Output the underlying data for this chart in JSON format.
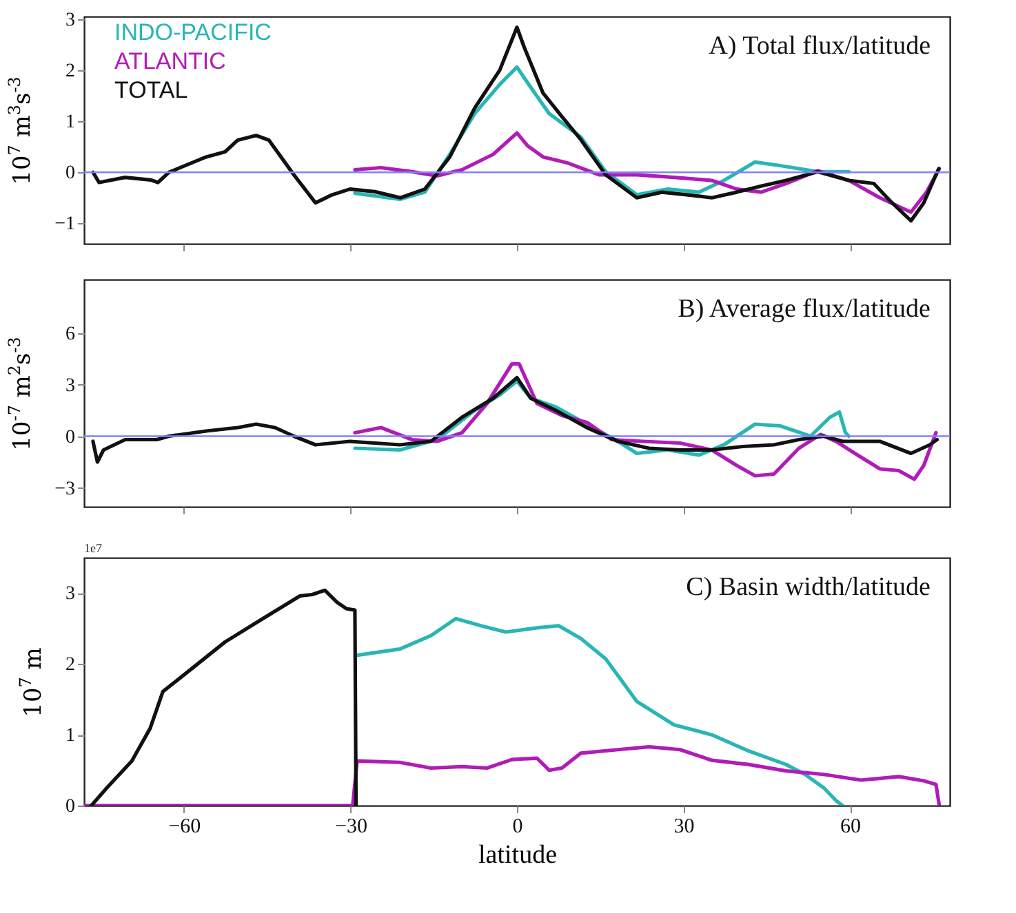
{
  "chart_data": [
    {
      "type": "line",
      "title": "A) Total flux/latitude",
      "ylabel": "10$^{7}$ m$^{3}$s$^{-3}$",
      "xlim": [
        -78,
        78
      ],
      "xticks": [
        -60,
        -30,
        0,
        30,
        60
      ],
      "ylim": [
        -1.4,
        3.05
      ],
      "yticks": [
        -1,
        0,
        1,
        2,
        3
      ],
      "tick_labels": "y",
      "grid": false,
      "ref_lines": [
        {
          "axis": "y",
          "value": 0,
          "color": "#8080ff"
        }
      ],
      "series": [
        {
          "name": "INDO-PACIFIC",
          "color": "#2ab5b5",
          "x": [
            -29.2,
            -21.1,
            -16.6,
            -12.1,
            -7.6,
            -3.1,
            0,
            2.5,
            5.8,
            11.5,
            16,
            21.6,
            27.2,
            32.8,
            37.3,
            42.9,
            47.4,
            54.2,
            59.8
          ],
          "values": [
            -0.41,
            -0.53,
            -0.39,
            0.35,
            1.15,
            1.72,
            2.06,
            1.66,
            1.15,
            0.69,
            0.01,
            -0.44,
            -0.33,
            -0.39,
            -0.16,
            0.2,
            0.13,
            0.01,
            0.01
          ]
        },
        {
          "name": "ATLANTIC",
          "color": "#b01cb8",
          "x": [
            -29.2,
            -24.5,
            -18.9,
            -14.4,
            -9.9,
            -4.3,
            0,
            1.9,
            4.7,
            9.2,
            14.8,
            21.6,
            28.3,
            35.1,
            39.6,
            44,
            48.5,
            54.2,
            59.8,
            65.4,
            71,
            73.8,
            76.1
          ],
          "values": [
            0.05,
            0.09,
            0.01,
            -0.07,
            0.05,
            0.35,
            0.77,
            0.52,
            0.3,
            0.18,
            -0.05,
            -0.05,
            -0.1,
            -0.16,
            -0.33,
            -0.39,
            -0.22,
            0.03,
            -0.16,
            -0.5,
            -0.78,
            -0.39,
            0.07
          ]
        },
        {
          "name": "TOTAL",
          "color": "#111111",
          "x": [
            -76.4,
            -75.3,
            -70.6,
            -66,
            -64.7,
            -62.7,
            -56,
            -52.6,
            -50.3,
            -47,
            -44.7,
            -40.2,
            -36.3,
            -33.5,
            -30.1,
            -25.6,
            -21,
            -16.6,
            -12.1,
            -7.6,
            -3.1,
            0,
            1.3,
            4.7,
            8.1,
            11.5,
            16,
            21.6,
            26.1,
            30.6,
            35.1,
            39.6,
            44,
            48.5,
            54.2,
            59.8,
            64.3,
            67.6,
            71,
            73.3,
            75.5,
            76
          ],
          "values": [
            0,
            -0.2,
            -0.1,
            -0.15,
            -0.2,
            0,
            0.3,
            0.4,
            0.63,
            0.72,
            0.63,
            -0.05,
            -0.6,
            -0.45,
            -0.33,
            -0.38,
            -0.5,
            -0.33,
            0.3,
            1.26,
            2,
            2.84,
            2.45,
            1.55,
            1.09,
            0.64,
            -0.05,
            -0.5,
            -0.39,
            -0.44,
            -0.5,
            -0.39,
            -0.27,
            -0.16,
            0.01,
            -0.16,
            -0.22,
            -0.6,
            -0.95,
            -0.6,
            -0.05,
            0.07
          ]
        }
      ]
    },
    {
      "type": "line",
      "title": "B) Average flux/latitude",
      "ylabel": "10$^{-7}$ m$^{2}$s$^{-3}$",
      "xlim": [
        -78,
        78
      ],
      "xticks": [
        -60,
        -30,
        0,
        30,
        60
      ],
      "ylim": [
        -4.1,
        9.1
      ],
      "yticks": [
        -3,
        0,
        3,
        6
      ],
      "tick_labels": "y",
      "grid": false,
      "ref_lines": [
        {
          "axis": "y",
          "value": 0,
          "color": "#8080ff"
        }
      ],
      "series": [
        {
          "color": "#2ab5b5",
          "x": [
            -29.2,
            -21.1,
            -14.4,
            -7.6,
            -3.1,
            0,
            2.5,
            7,
            12.6,
            18.2,
            21.6,
            27.2,
            32.8,
            37.3,
            42.9,
            47.4,
            52.9,
            56.4,
            58.1,
            59.2,
            59.8
          ],
          "values": [
            -0.7,
            -0.8,
            -0.2,
            1.5,
            2.4,
            3.2,
            2.2,
            1.7,
            0.7,
            -0.3,
            -1,
            -0.8,
            -1.1,
            -0.5,
            0.7,
            0.6,
            0,
            1.1,
            1.4,
            0.2,
            0
          ]
        },
        {
          "color": "#b01cb8",
          "x": [
            -29.2,
            -24.5,
            -18.9,
            -14.4,
            -9.9,
            -5.4,
            -0.9,
            0.4,
            3.6,
            8.1,
            12.6,
            17.1,
            22.7,
            29.4,
            35.1,
            39.6,
            42.9,
            46.3,
            50.8,
            54.7,
            57.5,
            60.9,
            65.4,
            68.8,
            71.6,
            73.3,
            75.5
          ],
          "values": [
            0.2,
            0.5,
            -0.2,
            -0.3,
            0.2,
            1.9,
            4.2,
            4.2,
            1.9,
            1.2,
            0.8,
            -0.2,
            -0.3,
            -0.4,
            -0.8,
            -1.7,
            -2.3,
            -2.2,
            -0.7,
            0.1,
            -0.3,
            -1,
            -1.9,
            -2,
            -2.5,
            -1.7,
            0.2
          ]
        },
        {
          "color": "#111111",
          "x": [
            -76.4,
            -75.6,
            -74.5,
            -70.6,
            -64.9,
            -62.7,
            -56,
            -50.3,
            -47,
            -43.6,
            -40.2,
            -36.3,
            -30.1,
            -25.6,
            -21.1,
            -15.5,
            -9.9,
            -4.3,
            0,
            2.5,
            7,
            12.6,
            18.2,
            23.8,
            29.4,
            35.1,
            40.7,
            46.3,
            50.8,
            55.3,
            58.7,
            62,
            65.4,
            71,
            74.4,
            75.7
          ],
          "values": [
            -0.3,
            -1.5,
            -0.8,
            -0.2,
            -0.2,
            0,
            0.3,
            0.5,
            0.7,
            0.5,
            0,
            -0.5,
            -0.3,
            -0.4,
            -0.5,
            -0.3,
            1.1,
            2.2,
            3.4,
            2.2,
            1.5,
            0.5,
            -0.3,
            -0.7,
            -0.8,
            -0.8,
            -0.6,
            -0.5,
            -0.2,
            0,
            -0.3,
            -0.3,
            -0.3,
            -1,
            -0.5,
            -0.2
          ]
        }
      ]
    },
    {
      "type": "line",
      "title": "C) Basin width/latitude",
      "ylabel": "10$^{7}$ m",
      "xlabel": "latitude",
      "annotations": [
        "1e7"
      ],
      "xlim": [
        -78,
        78
      ],
      "xticks": [
        -60,
        -30,
        0,
        30,
        60
      ],
      "ylim": [
        0,
        3.5
      ],
      "yticks": [
        0,
        1,
        2,
        3
      ],
      "grid": false,
      "series": [
        {
          "color": "#2ab5b5",
          "x": [
            -29,
            -21.1,
            -15.5,
            -11,
            -6.5,
            -2,
            3.6,
            7.5,
            11.5,
            16,
            21.6,
            28.3,
            35.1,
            41.8,
            48.5,
            51.9,
            55.3,
            57.5,
            58.7
          ],
          "values": [
            2.12,
            2.21,
            2.4,
            2.64,
            2.54,
            2.45,
            2.51,
            2.54,
            2.36,
            2.07,
            1.47,
            1.14,
            1,
            0.77,
            0.58,
            0.44,
            0.25,
            0.07,
            0
          ]
        },
        {
          "color": "#b01cb8",
          "x": [
            -77.9,
            -29.6,
            -28.8,
            -21.1,
            -15.5,
            -9.9,
            -5.4,
            -0.9,
            3.6,
            5.8,
            8.1,
            11.5,
            18.2,
            23.8,
            29.4,
            35.1,
            41.8,
            48.5,
            55.3,
            62,
            68.8,
            73.3,
            75.5,
            76.1
          ],
          "values": [
            0,
            0,
            0.63,
            0.61,
            0.53,
            0.55,
            0.53,
            0.65,
            0.67,
            0.5,
            0.53,
            0.74,
            0.79,
            0.83,
            0.79,
            0.64,
            0.58,
            0.49,
            0.44,
            0.36,
            0.41,
            0.35,
            0.3,
            0
          ]
        },
        {
          "color": "#111111",
          "x": [
            -76.7,
            -73.9,
            -69.4,
            -66.1,
            -63.8,
            -59.3,
            -52.6,
            -45.8,
            -39.1,
            -36.9,
            -34.6,
            -32.4,
            -30.7,
            -29.2,
            -29
          ],
          "values": [
            0,
            0.25,
            0.63,
            1.09,
            1.61,
            1.89,
            2.31,
            2.64,
            2.96,
            2.98,
            3.04,
            2.87,
            2.78,
            2.76,
            0
          ]
        }
      ]
    }
  ]
}
